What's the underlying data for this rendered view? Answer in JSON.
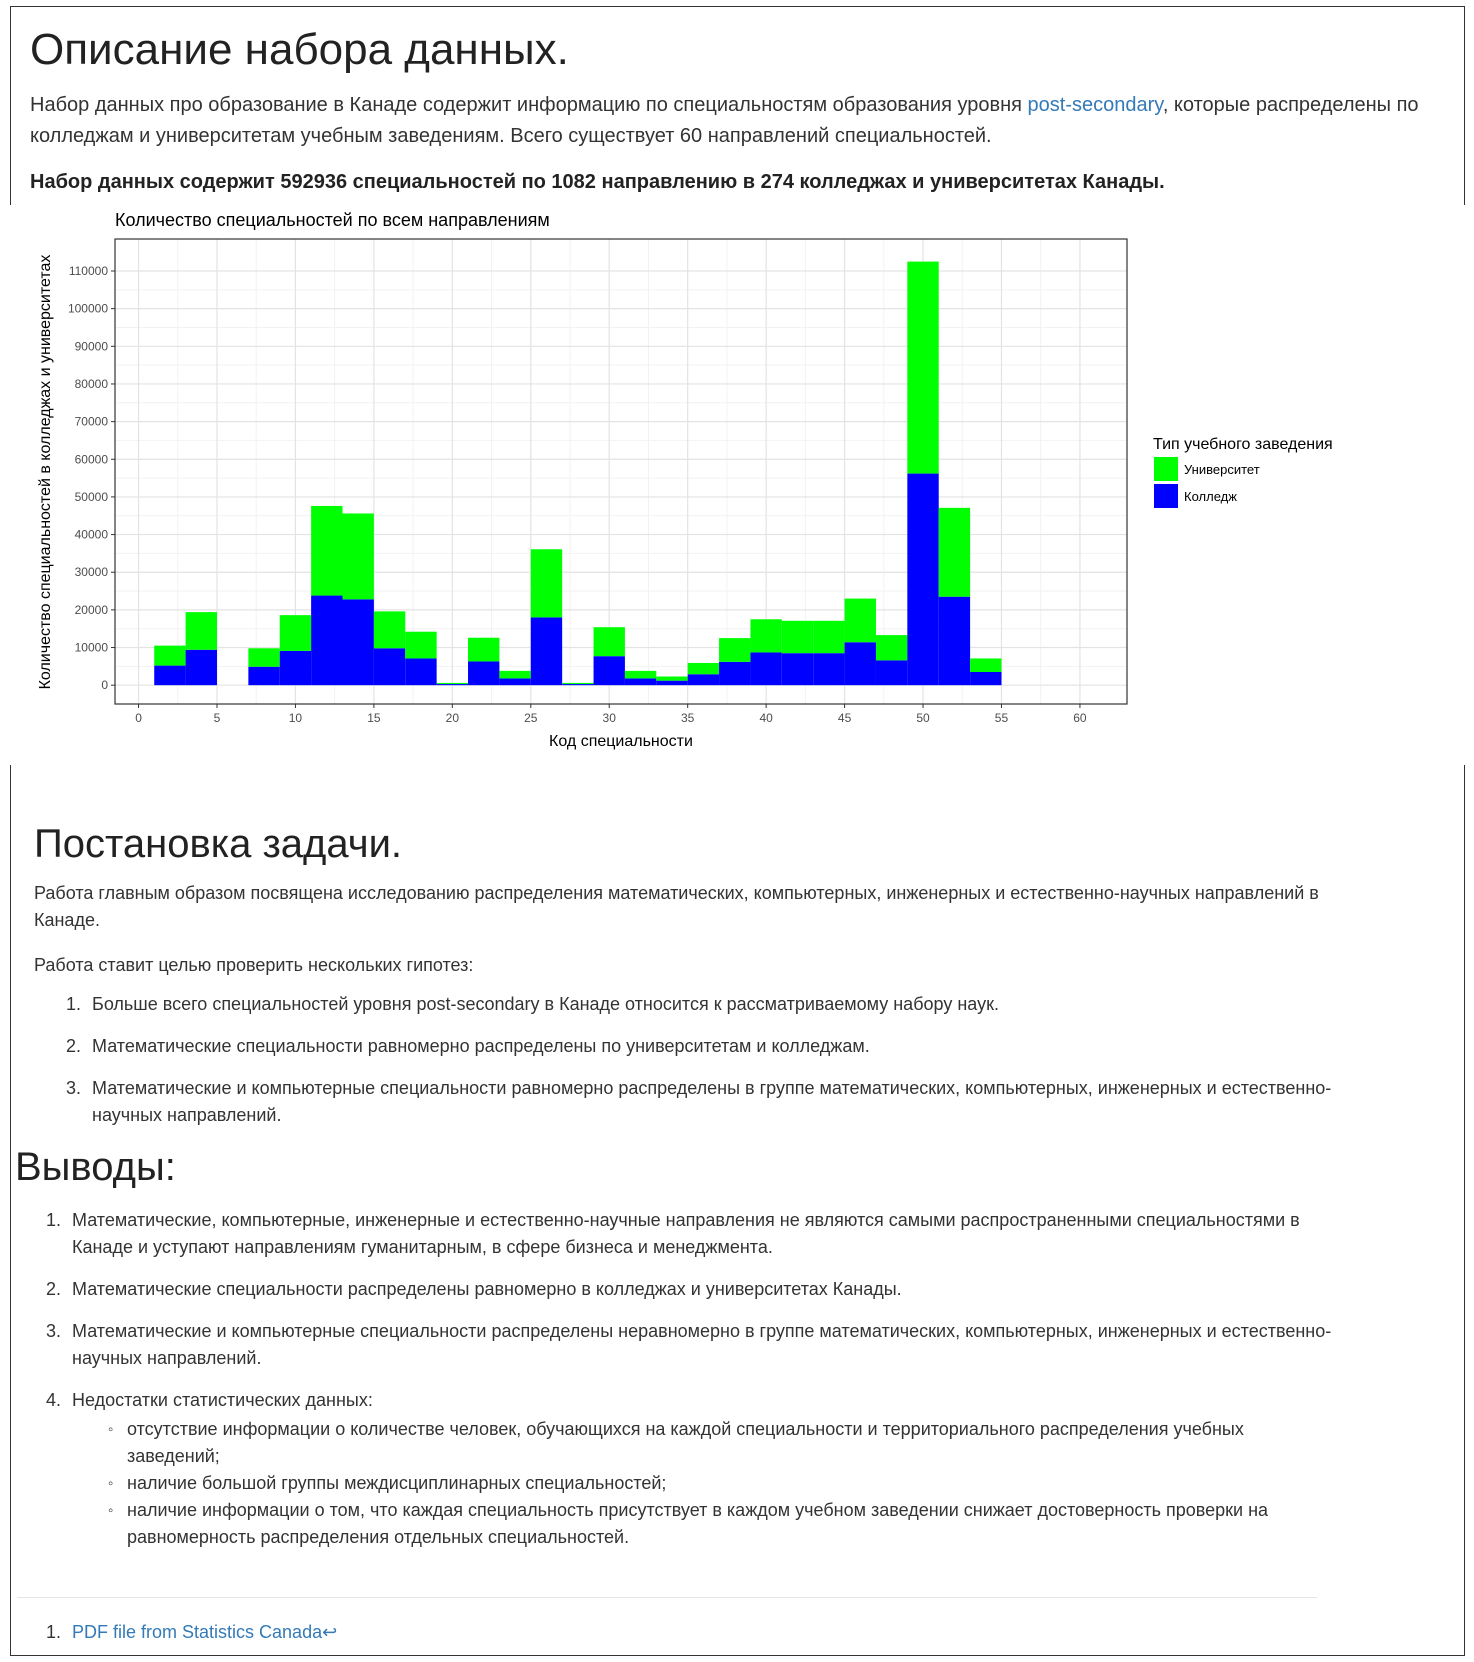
{
  "section1": {
    "heading": "Описание набора данных.",
    "intro_before_link": "Набор данных про образование в Канаде содержит информацию по специальностям образования уровня ",
    "intro_link": "post-secondary",
    "intro_after_link": ", которые распределены по колледжам и университетам учебным заведениям. Всего существует 60 направлений специальностей.",
    "summary": "Набор данных содержит 592936 специальностей по 1082 направлению в 274 колледжах и университетах Канады."
  },
  "chart_data": {
    "type": "bar",
    "stacked": true,
    "title": "Количество специальностей по всем направлениям",
    "xlabel": "Код специальности",
    "ylabel": "Количество специальностей в колледжах и университетах",
    "xlim": [
      -1.5,
      63
    ],
    "ylim": [
      -5000,
      118500
    ],
    "x_ticks": [
      0,
      5,
      10,
      15,
      20,
      25,
      30,
      35,
      40,
      45,
      50,
      55,
      60
    ],
    "y_ticks": [
      0,
      10000,
      20000,
      30000,
      40000,
      50000,
      60000,
      70000,
      80000,
      90000,
      100000,
      110000
    ],
    "bin_width": 2,
    "grid": true,
    "legend": {
      "title": "Тип учебного заведения",
      "position": "right"
    },
    "colors": {
      "university": "#00ff00",
      "college": "#0000ff"
    },
    "x": [
      2,
      4,
      8,
      10,
      12,
      14,
      16,
      18,
      20,
      22,
      24,
      26,
      28,
      30,
      32,
      34,
      36,
      38,
      40,
      42,
      44,
      46,
      48,
      50,
      52,
      54
    ],
    "series": [
      {
        "name": "Колледж",
        "color": "#0000ff",
        "values": [
          5200,
          9400,
          4900,
          9100,
          23800,
          22800,
          9800,
          7100,
          300,
          6300,
          1800,
          18000,
          300,
          7700,
          1800,
          1200,
          2900,
          6200,
          8700,
          8500,
          8500,
          11400,
          6600,
          56200,
          23500,
          3500
        ]
      },
      {
        "name": "Университет",
        "color": "#00ff00",
        "values": [
          5300,
          10000,
          4900,
          9500,
          23800,
          22800,
          9800,
          7100,
          300,
          6300,
          2000,
          18100,
          300,
          7700,
          2000,
          1100,
          3000,
          6300,
          8800,
          8600,
          8600,
          11600,
          6700,
          56300,
          23600,
          3600
        ]
      }
    ]
  },
  "section2": {
    "heading": "Постановка задачи.",
    "para1": "Работа главным образом посвящена исследованию распределения математических, компьютерных, инженерных и естественно-научных направлений в Канаде.",
    "para2": "Работа ставит целью проверить нескольких гипотез:",
    "items": [
      {
        "num": "1.",
        "text": "Больше всего специальностей уровня post-secondary в Канаде относится к рассматриваемому набору наук."
      },
      {
        "num": "2.",
        "text": "Математические специальности равномерно распределены по университетам и колледжам."
      },
      {
        "num": "3.",
        "text": "Математические и компьютерные специальности равномерно распределены в группе математических, компьютерных, инженерных и естественно-научных направлений."
      }
    ]
  },
  "section3": {
    "heading": "Выводы:",
    "items": [
      {
        "num": "1.",
        "text": "Математические, компьютерные, инженерные и естественно-научные направления не являются самыми распространенными специальностями в Канаде и уступают направлениям гуманитарным, в сфере бизнеса и менеджмента."
      },
      {
        "num": "2.",
        "text": "Математические специальности распределены равномерно в колледжах и университетах Канады."
      },
      {
        "num": "3.",
        "text": "Математические и компьютерные специальности распределены неравномерно в группе математических, компьютерных, инженерных и естественно-научных направлений."
      },
      {
        "num": "4.",
        "text": "Недостатки статистических данных:"
      }
    ],
    "sub_items": [
      "отсутствие информации о количестве человек, обучающихся на каждой специальности и территориального распределения учебных заведений;",
      "наличие большой группы междисциплинарных специальностей;",
      "наличие информации о том, что каждая специальность присутствует в каждом учебном заведении снижает достоверность проверки на равномерность распределения отдельных специальностей."
    ],
    "bullet": "◦"
  },
  "footnote": {
    "num": "1.",
    "link_text": "PDF file from Statistics Canada",
    "backref": "↩"
  }
}
